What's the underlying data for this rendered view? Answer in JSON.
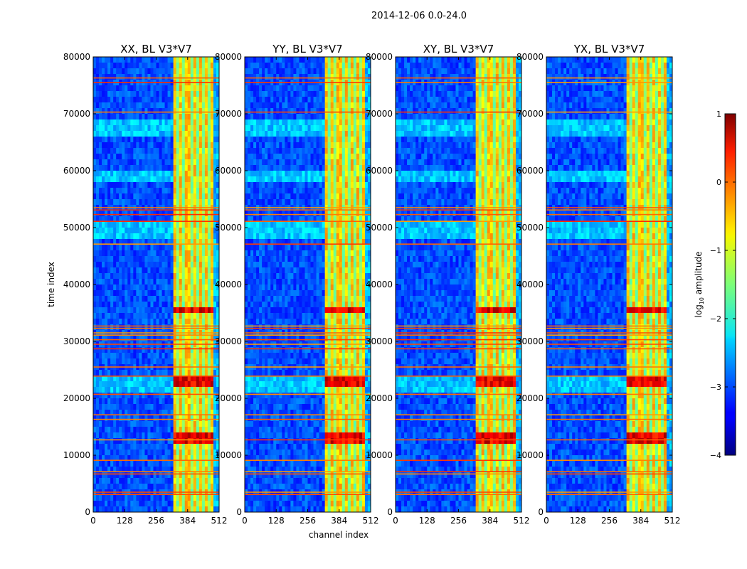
{
  "figure_title": "2014-12-06 0.0-24.0",
  "xlabel": "channel index",
  "ylabel": "time index",
  "colorbar": {
    "label": "log10 amplitude",
    "label_base": "log",
    "label_sub": "10",
    "label_rest": " amplitude",
    "range": [
      -4,
      1
    ],
    "ticks": [
      "1",
      "0",
      "−1",
      "−2",
      "−3",
      "−4"
    ],
    "tick_values": [
      1,
      0,
      -1,
      -2,
      -3,
      -4
    ],
    "colormap": "jet"
  },
  "chart_data": [
    {
      "type": "heatmap",
      "title": "XX, BL V3*V7",
      "xlim": [
        0,
        512
      ],
      "ylim": [
        0,
        80000
      ],
      "xticks": [
        "0",
        "128",
        "256",
        "384",
        "512"
      ],
      "xtick_values": [
        0,
        128,
        256,
        384,
        512
      ],
      "yticks": [
        "0",
        "10000",
        "20000",
        "30000",
        "40000",
        "50000",
        "60000",
        "70000",
        "80000"
      ],
      "ytick_values": [
        0,
        10000,
        20000,
        30000,
        40000,
        50000,
        60000,
        70000,
        80000
      ]
    },
    {
      "type": "heatmap",
      "title": "YY, BL V3*V7",
      "xlim": [
        0,
        512
      ],
      "ylim": [
        0,
        80000
      ],
      "xticks": [
        "0",
        "128",
        "256",
        "384",
        "512"
      ],
      "xtick_values": [
        0,
        128,
        256,
        384,
        512
      ],
      "yticks": [
        "0",
        "10000",
        "20000",
        "30000",
        "40000",
        "50000",
        "60000",
        "70000",
        "80000"
      ],
      "ytick_values": [
        0,
        10000,
        20000,
        30000,
        40000,
        50000,
        60000,
        70000,
        80000
      ]
    },
    {
      "type": "heatmap",
      "title": "XY, BL V3*V7",
      "xlim": [
        0,
        512
      ],
      "ylim": [
        0,
        80000
      ],
      "xticks": [
        "0",
        "128",
        "256",
        "384",
        "512"
      ],
      "xtick_values": [
        0,
        128,
        256,
        384,
        512
      ],
      "yticks": [
        "0",
        "10000",
        "20000",
        "30000",
        "40000",
        "50000",
        "60000",
        "70000",
        "80000"
      ],
      "ytick_values": [
        0,
        10000,
        20000,
        30000,
        40000,
        50000,
        60000,
        70000,
        80000
      ]
    },
    {
      "type": "heatmap",
      "title": "YX, BL V3*V7",
      "xlim": [
        0,
        512
      ],
      "ylim": [
        0,
        80000
      ],
      "xticks": [
        "0",
        "128",
        "256",
        "384",
        "512"
      ],
      "xtick_values": [
        0,
        128,
        256,
        384,
        512
      ],
      "yticks": [
        "0",
        "10000",
        "20000",
        "30000",
        "40000",
        "50000",
        "60000",
        "70000",
        "80000"
      ],
      "ytick_values": [
        0,
        10000,
        20000,
        30000,
        40000,
        50000,
        60000,
        70000,
        80000
      ]
    }
  ]
}
